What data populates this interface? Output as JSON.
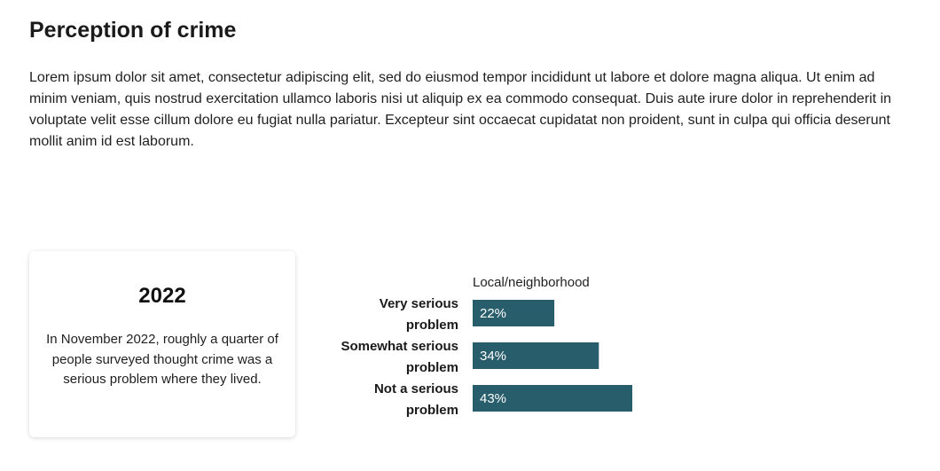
{
  "header": {
    "title": "Perception of crime"
  },
  "intro": {
    "text": "Lorem ipsum dolor sit amet, consectetur adipiscing elit, sed do eiusmod tempor incididunt ut labore et dolore magna aliqua. Ut enim ad minim veniam, quis nostrud exercitation ullamco laboris nisi ut aliquip ex ea commodo consequat. Duis aute irure dolor in reprehenderit in voluptate velit esse cillum dolore eu fugiat nulla pariatur. Excepteur sint occaecat cupidatat non proident, sunt in culpa qui officia deserunt mollit anim id est laborum."
  },
  "card": {
    "year": "2022",
    "text": "In November 2022, roughly a quarter of people surveyed thought crime was a serious problem where they lived."
  },
  "colors": {
    "bar": "#285d6b"
  },
  "chart_data": {
    "type": "bar",
    "orientation": "horizontal",
    "column_label": "Local/neighborhood",
    "categories": [
      [
        "Very serious",
        "problem"
      ],
      [
        "Somewhat serious",
        "problem"
      ],
      [
        "Not a serious",
        "problem"
      ]
    ],
    "values": [
      22,
      34,
      43
    ],
    "value_labels": [
      "22%",
      "34%",
      "43%"
    ],
    "unit": "%",
    "xlim": [
      0,
      100
    ],
    "grid": false,
    "legend": "none"
  }
}
